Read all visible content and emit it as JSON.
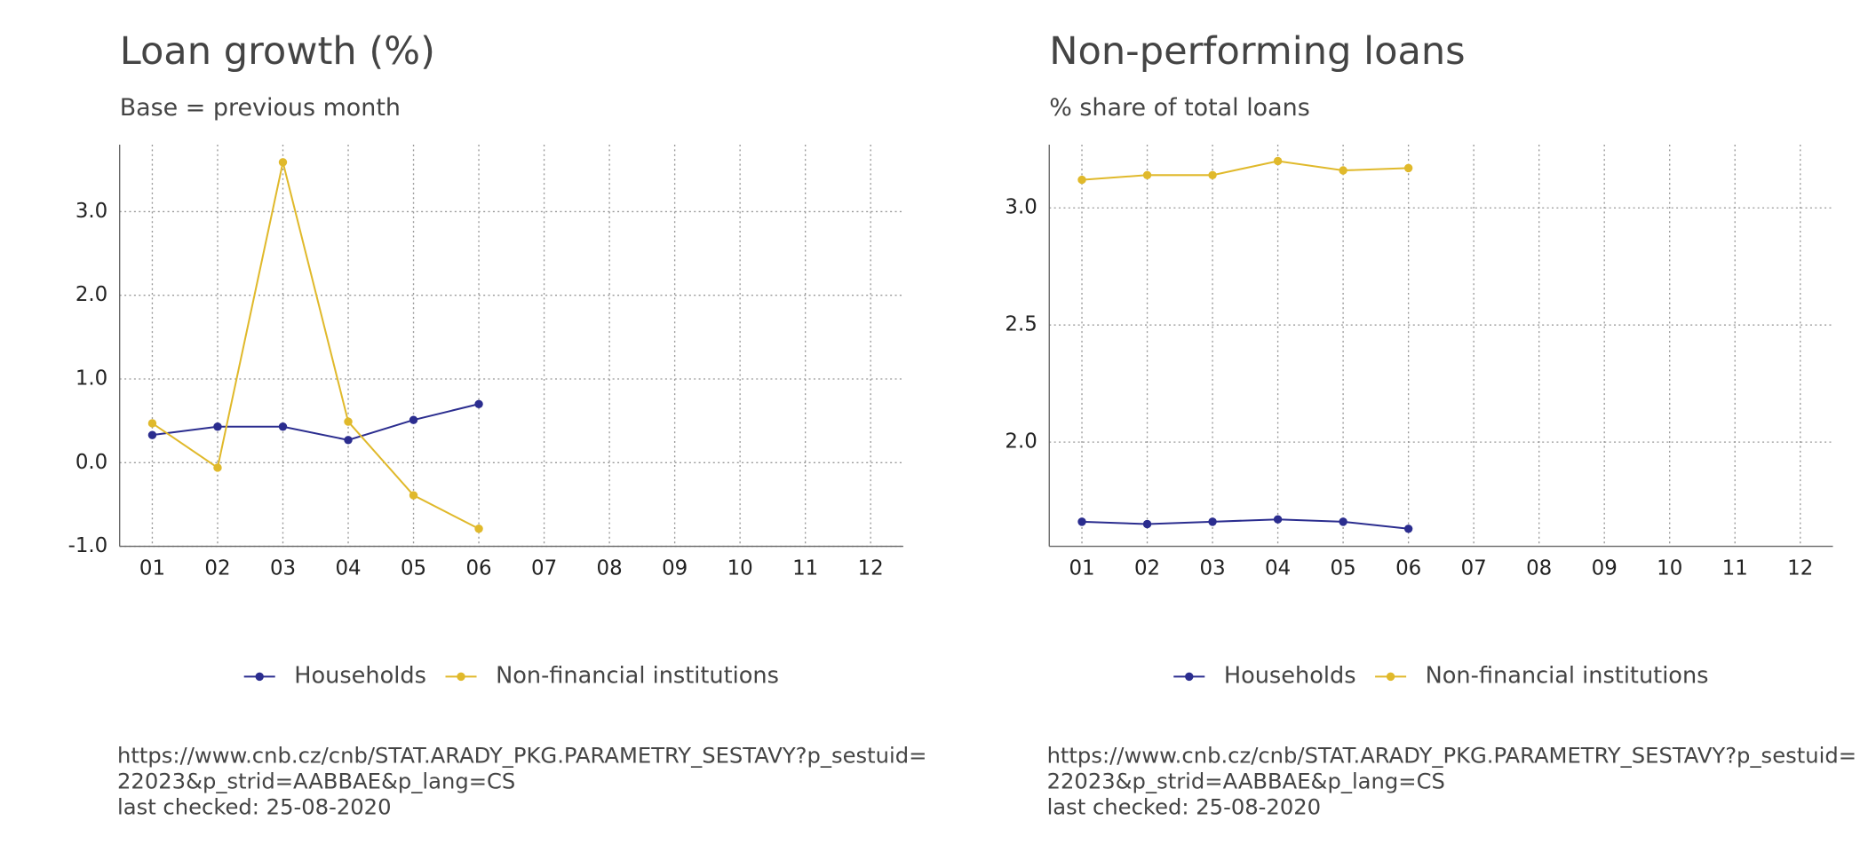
{
  "chart_data": [
    {
      "type": "line",
      "title": "Loan growth (%)",
      "subtitle": "Base = previous month",
      "categories": [
        "01",
        "02",
        "03",
        "04",
        "05",
        "06",
        "07",
        "08",
        "09",
        "10",
        "11",
        "12"
      ],
      "series": [
        {
          "name": "Households",
          "color": "#2b2d8f",
          "values": [
            0.33,
            0.43,
            0.43,
            0.27,
            0.51,
            0.7,
            null,
            null,
            null,
            null,
            null,
            null
          ]
        },
        {
          "name": "Non-financial institutions",
          "color": "#e0b92b",
          "values": [
            0.47,
            -0.06,
            3.59,
            0.49,
            -0.39,
            -0.79,
            null,
            null,
            null,
            null,
            null,
            null
          ]
        }
      ],
      "ylim": [
        -1,
        3.8
      ],
      "yticks": [
        {
          "value": -1,
          "label": "-1.0"
        },
        {
          "value": 0,
          "label": "0.0"
        },
        {
          "value": 1,
          "label": "1.0"
        },
        {
          "value": 2,
          "label": "2.0"
        },
        {
          "value": 3,
          "label": "3.0"
        }
      ],
      "grid": true,
      "legend": "bottom",
      "source": [
        "https://www.cnb.cz/cnb/STAT.ARADY_PKG.PARAMETRY_SESTAVY?p_sestuid=",
        "22023&p_strid=AABBAE&p_lang=CS",
        "last checked: 25-08-2020"
      ]
    },
    {
      "type": "line",
      "title": "Non-performing loans",
      "subtitle": "% share of total loans",
      "categories": [
        "01",
        "02",
        "03",
        "04",
        "05",
        "06",
        "07",
        "08",
        "09",
        "10",
        "11",
        "12"
      ],
      "series": [
        {
          "name": "Households",
          "color": "#2b2d8f",
          "values": [
            1.66,
            1.65,
            1.66,
            1.67,
            1.66,
            1.63,
            null,
            null,
            null,
            null,
            null,
            null
          ]
        },
        {
          "name": "Non-financial institutions",
          "color": "#e0b92b",
          "values": [
            3.12,
            3.14,
            3.14,
            3.2,
            3.16,
            3.17,
            null,
            null,
            null,
            null,
            null,
            null
          ]
        }
      ],
      "ylim": [
        1.555,
        3.27
      ],
      "yticks": [
        {
          "value": 2,
          "label": "2.0"
        },
        {
          "value": 2.5,
          "label": "2.5"
        },
        {
          "value": 3,
          "label": "3.0"
        }
      ],
      "grid": true,
      "legend": "bottom",
      "source": [
        "https://www.cnb.cz/cnb/STAT.ARADY_PKG.PARAMETRY_SESTAVY?p_sestuid=",
        "22023&p_strid=AABBAE&p_lang=CS",
        "last checked: 25-08-2020"
      ]
    }
  ]
}
